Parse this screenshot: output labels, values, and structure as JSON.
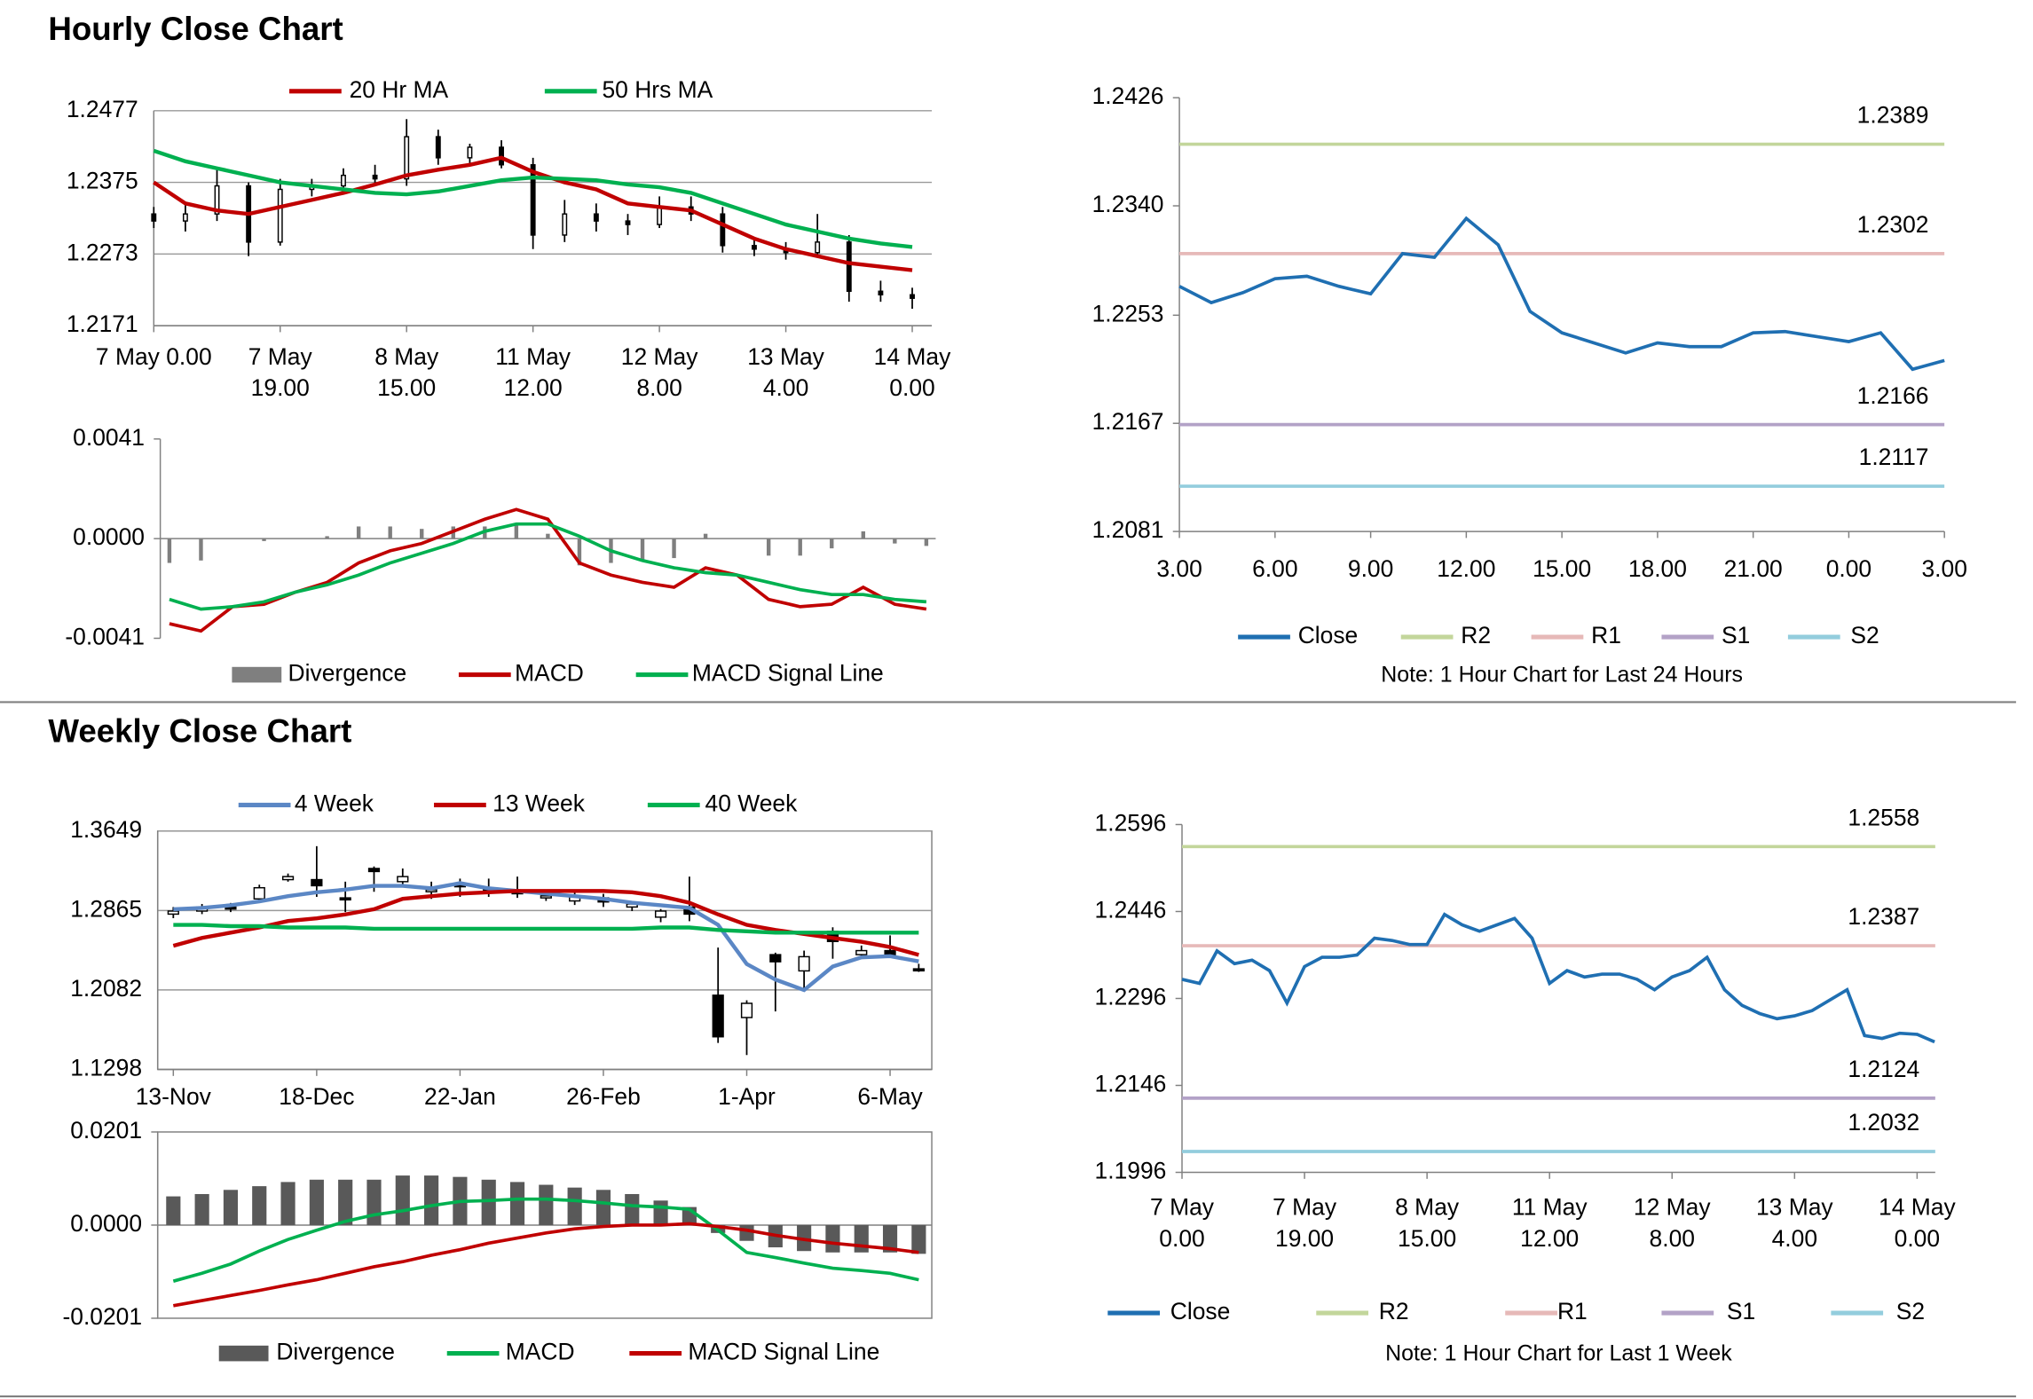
{
  "sections": [
    "Hourly Close Chart",
    "Weekly Close Chart"
  ],
  "chart_data": [
    {
      "type": "candlestick",
      "categories": [
        [
          "7 May 0.00"
        ],
        null,
        null,
        null,
        [
          "7 May",
          "19.00"
        ],
        null,
        null,
        null,
        [
          "8 May",
          "15.00"
        ],
        null,
        null,
        null,
        [
          "11 May",
          "12.00"
        ],
        null,
        null,
        null,
        [
          "12 May",
          "8.00"
        ],
        null,
        null,
        null,
        [
          "13 May",
          "4.00"
        ],
        null,
        null,
        null,
        [
          "14 May",
          "0.00"
        ]
      ],
      "open": [
        1.233,
        1.232,
        1.233,
        1.237,
        1.229,
        1.2365,
        1.237,
        1.2385,
        1.238,
        1.244,
        1.241,
        1.2425,
        1.24,
        1.23,
        1.233,
        1.232,
        1.2315,
        1.234,
        1.233,
        1.2285,
        1.228,
        1.2275,
        1.229,
        1.222,
        1.2215
      ],
      "high": [
        1.234,
        1.2345,
        1.2395,
        1.2375,
        1.238,
        1.238,
        1.2395,
        1.24,
        1.2465,
        1.245,
        1.243,
        1.2435,
        1.241,
        1.235,
        1.2345,
        1.233,
        1.2355,
        1.2355,
        1.234,
        1.2295,
        1.229,
        1.233,
        1.23,
        1.2235,
        1.2225
      ],
      "low": [
        1.231,
        1.2305,
        1.232,
        1.227,
        1.2285,
        1.2355,
        1.236,
        1.237,
        1.237,
        1.24,
        1.24,
        1.2395,
        1.228,
        1.229,
        1.2305,
        1.23,
        1.231,
        1.232,
        1.2275,
        1.227,
        1.2265,
        1.227,
        1.2205,
        1.2205,
        1.2195
      ],
      "close": [
        1.232,
        1.233,
        1.237,
        1.229,
        1.2365,
        1.237,
        1.2385,
        1.238,
        1.244,
        1.241,
        1.2425,
        1.24,
        1.23,
        1.233,
        1.232,
        1.2315,
        1.234,
        1.233,
        1.2285,
        1.228,
        1.2275,
        1.229,
        1.222,
        1.2215,
        1.221
      ],
      "series": [
        {
          "name": "20 Hr MA",
          "color": "#c00000",
          "values": [
            1.2375,
            1.2345,
            1.2335,
            1.233,
            1.234,
            1.235,
            1.236,
            1.2372,
            1.2385,
            1.2393,
            1.24,
            1.241,
            1.239,
            1.2375,
            1.2365,
            1.2345,
            1.234,
            1.2335,
            1.2315,
            1.2295,
            1.228,
            1.227,
            1.226,
            1.2255,
            1.225
          ]
        },
        {
          "name": "50 Hrs MA",
          "color": "#00b050",
          "values": [
            1.242,
            1.2405,
            1.2395,
            1.2385,
            1.2375,
            1.237,
            1.2365,
            1.236,
            1.2358,
            1.2362,
            1.237,
            1.2378,
            1.2382,
            1.238,
            1.2378,
            1.2372,
            1.2368,
            1.236,
            1.2345,
            1.233,
            1.2315,
            1.2305,
            1.2295,
            1.2288,
            1.2283
          ]
        }
      ],
      "ylim": [
        1.2171,
        1.2477
      ],
      "yticks": [
        1.2171,
        1.2273,
        1.2375,
        1.2477
      ],
      "grid": true
    },
    {
      "type": "macd",
      "series": [
        {
          "name": "Divergence",
          "kind": "bar",
          "color": "#7f7f7f",
          "values": [
            -0.001,
            -0.0009,
            0.0,
            -0.0001,
            0.0,
            0.0001,
            0.0005,
            0.0005,
            0.0004,
            0.0005,
            0.0005,
            0.0006,
            0.0002,
            -0.0011,
            -0.001,
            -0.0009,
            -0.0008,
            0.0002,
            0.0,
            -0.0007,
            -0.0007,
            -0.0004,
            0.0003,
            -0.0002,
            -0.0003
          ]
        },
        {
          "name": "MACD",
          "kind": "line",
          "color": "#c00000",
          "values": [
            -0.0035,
            -0.0038,
            -0.0028,
            -0.0027,
            -0.0022,
            -0.0018,
            -0.001,
            -0.0005,
            -0.0002,
            0.0003,
            0.0008,
            0.0012,
            0.0008,
            -0.001,
            -0.0015,
            -0.0018,
            -0.002,
            -0.0012,
            -0.0015,
            -0.0025,
            -0.0028,
            -0.0027,
            -0.002,
            -0.0027,
            -0.0029
          ]
        },
        {
          "name": "MACD Signal Line",
          "kind": "line",
          "color": "#00b050",
          "values": [
            -0.0025,
            -0.0029,
            -0.0028,
            -0.0026,
            -0.0022,
            -0.0019,
            -0.0015,
            -0.001,
            -0.0006,
            -0.0002,
            0.0003,
            0.0006,
            0.0006,
            0.0001,
            -0.0005,
            -0.0009,
            -0.0012,
            -0.0014,
            -0.0015,
            -0.0018,
            -0.0021,
            -0.0023,
            -0.0023,
            -0.0025,
            -0.0026
          ]
        }
      ],
      "ylim": [
        -0.0041,
        0.0041
      ],
      "yticks": [
        -0.0041,
        {
          "value": 0,
          "label": "0.0000"
        },
        0.0041
      ],
      "grid": false
    },
    {
      "type": "line",
      "categories": [
        "3.00",
        null,
        null,
        "6.00",
        null,
        null,
        "9.00",
        null,
        null,
        "12.00",
        null,
        null,
        "15.00",
        null,
        null,
        "18.00",
        null,
        null,
        "21.00",
        null,
        null,
        "0.00",
        null,
        null,
        "3.00"
      ],
      "series": [
        {
          "name": "Close",
          "color": "#1f6fb2",
          "values": [
            1.2276,
            1.2263,
            1.2271,
            1.2282,
            1.2284,
            1.2276,
            1.227,
            1.2302,
            1.2299,
            1.233,
            1.2309,
            1.2256,
            1.2239,
            1.2231,
            1.2223,
            1.2231,
            1.2228,
            1.2228,
            1.2239,
            1.224,
            1.2236,
            1.2232,
            1.2239,
            1.221,
            1.2217
          ]
        }
      ],
      "levels": [
        {
          "name": "R2",
          "color": "#c3d69b",
          "value": 1.2389
        },
        {
          "name": "R1",
          "color": "#e6b9b8",
          "value": 1.2302
        },
        {
          "name": "S1",
          "color": "#b3a2c7",
          "value": 1.2166
        },
        {
          "name": "S2",
          "color": "#93cddd",
          "value": 1.2117
        }
      ],
      "ylim": [
        1.2081,
        1.2426
      ],
      "yticks": [
        1.2081,
        1.2167,
        1.2253,
        {
          "value": 1.234,
          "label": "1.2340"
        },
        1.2426
      ],
      "grid": false,
      "note": "Note: 1 Hour Chart for Last 24 Hours"
    },
    {
      "type": "candlestick",
      "categories": [
        "13-Nov",
        null,
        null,
        null,
        null,
        "18-Dec",
        null,
        null,
        null,
        null,
        "22-Jan",
        null,
        null,
        null,
        null,
        "26-Feb",
        null,
        null,
        null,
        null,
        "1-Apr",
        null,
        null,
        null,
        null,
        "6-May",
        null
      ],
      "open": [
        1.283,
        1.286,
        1.29,
        1.298,
        1.317,
        1.317,
        1.299,
        1.328,
        1.315,
        1.306,
        1.313,
        1.308,
        1.305,
        1.299,
        1.296,
        1.299,
        1.29,
        1.28,
        1.29,
        1.203,
        1.181,
        1.243,
        1.227,
        1.266,
        1.243,
        1.247,
        1.229
      ],
      "high": [
        1.29,
        1.293,
        1.294,
        1.312,
        1.323,
        1.35,
        1.315,
        1.33,
        1.328,
        1.315,
        1.318,
        1.318,
        1.32,
        1.304,
        1.304,
        1.303,
        1.296,
        1.288,
        1.32,
        1.25,
        1.198,
        1.245,
        1.247,
        1.27,
        1.252,
        1.262,
        1.234
      ],
      "low": [
        1.279,
        1.283,
        1.285,
        1.296,
        1.315,
        1.3,
        1.285,
        1.305,
        1.31,
        1.298,
        1.3,
        1.3,
        1.299,
        1.296,
        1.292,
        1.29,
        1.286,
        1.275,
        1.276,
        1.156,
        1.144,
        1.187,
        1.209,
        1.239,
        1.239,
        1.24,
        1.226
      ],
      "close": [
        1.286,
        1.29,
        1.288,
        1.309,
        1.32,
        1.311,
        1.298,
        1.325,
        1.32,
        1.307,
        1.31,
        1.306,
        1.304,
        1.301,
        1.3,
        1.295,
        1.293,
        1.286,
        1.283,
        1.162,
        1.195,
        1.236,
        1.241,
        1.256,
        1.247,
        1.241,
        1.228
      ],
      "series": [
        {
          "name": "4 Week",
          "color": "#5b87c5",
          "values": [
            1.2878,
            1.2891,
            1.2917,
            1.2955,
            1.3007,
            1.3045,
            1.3071,
            1.3109,
            1.3109,
            1.3084,
            1.3135,
            1.3084,
            1.3058,
            1.3032,
            1.3007,
            1.2981,
            1.2942,
            1.2917,
            1.2891,
            1.2724,
            1.2338,
            1.2184,
            1.2081,
            1.2313,
            1.2403,
            1.2415,
            1.2364
          ]
        },
        {
          "name": "13 Week",
          "color": "#c00000",
          "values": [
            1.2518,
            1.2595,
            1.2647,
            1.2698,
            1.2762,
            1.2788,
            1.2827,
            1.2878,
            1.2981,
            1.3007,
            1.3032,
            1.3045,
            1.3058,
            1.3058,
            1.3058,
            1.3058,
            1.3045,
            1.3007,
            1.2942,
            1.2827,
            1.2724,
            1.2673,
            1.2634,
            1.2595,
            1.2557,
            1.2505,
            1.2428
          ]
        },
        {
          "name": "40 Week",
          "color": "#00b050",
          "values": [
            1.2724,
            1.2724,
            1.2711,
            1.2711,
            1.2698,
            1.2698,
            1.2698,
            1.2685,
            1.2685,
            1.2685,
            1.2685,
            1.2685,
            1.2685,
            1.2685,
            1.2685,
            1.2685,
            1.2685,
            1.2698,
            1.2698,
            1.2673,
            1.266,
            1.2647,
            1.2647,
            1.2647,
            1.2647,
            1.2647,
            1.2647
          ]
        }
      ],
      "ylim": [
        1.1298,
        1.3649
      ],
      "yticks": [
        1.1298,
        1.2082,
        1.2865,
        1.3649
      ],
      "grid": true
    },
    {
      "type": "macd",
      "series": [
        {
          "name": "Divergence",
          "kind": "bar",
          "color": "#595959",
          "values": [
            0.0062,
            0.0067,
            0.0076,
            0.0084,
            0.0093,
            0.0098,
            0.0098,
            0.0098,
            0.0107,
            0.0107,
            0.0104,
            0.0098,
            0.0093,
            0.0087,
            0.0081,
            0.0076,
            0.0067,
            0.0053,
            0.0039,
            -0.0017,
            -0.0034,
            -0.0048,
            -0.0056,
            -0.0059,
            -0.0059,
            -0.0059,
            -0.0062
          ]
        },
        {
          "name": "MACD",
          "kind": "line",
          "color": "#00b050",
          "values": [
            -0.0121,
            -0.0104,
            -0.0084,
            -0.0056,
            -0.0031,
            -0.0011,
            0.0008,
            0.0022,
            0.0031,
            0.0042,
            0.0051,
            0.0053,
            0.0056,
            0.0056,
            0.0053,
            0.0048,
            0.0042,
            0.0039,
            0.0034,
            -0.0011,
            -0.0059,
            -0.007,
            -0.0082,
            -0.0093,
            -0.0098,
            -0.0104,
            -0.0118
          ]
        },
        {
          "name": "MACD Signal Line",
          "kind": "line",
          "color": "#c00000",
          "values": [
            -0.0174,
            -0.0163,
            -0.0152,
            -0.0141,
            -0.0129,
            -0.0118,
            -0.0104,
            -0.009,
            -0.0079,
            -0.0065,
            -0.0053,
            -0.0039,
            -0.0028,
            -0.0017,
            -0.0008,
            -0.0003,
            0.0,
            0.0,
            0.0003,
            -0.0003,
            -0.0011,
            -0.0022,
            -0.0031,
            -0.0039,
            -0.0045,
            -0.0051,
            -0.0059
          ]
        }
      ],
      "ylim": [
        -0.0201,
        0.0201
      ],
      "yticks": [
        -0.0201,
        {
          "value": 0,
          "label": "0.0000"
        },
        0.0201
      ],
      "grid": false
    },
    {
      "type": "line",
      "categories": [
        [
          "7 May",
          "0.00"
        ],
        null,
        null,
        null,
        null,
        null,
        null,
        [
          "7 May",
          "19.00"
        ],
        null,
        null,
        null,
        null,
        null,
        null,
        [
          "8 May",
          "15.00"
        ],
        null,
        null,
        null,
        null,
        null,
        null,
        [
          "11 May",
          "12.00"
        ],
        null,
        null,
        null,
        null,
        null,
        null,
        [
          "12 May",
          "8.00"
        ],
        null,
        null,
        null,
        null,
        null,
        null,
        [
          "13 May",
          "4.00"
        ],
        null,
        null,
        null,
        null,
        null,
        null,
        [
          "14 May",
          "0.00"
        ],
        null
      ],
      "series": [
        {
          "name": "Close",
          "color": "#1f6fb2",
          "values": [
            1.2329,
            1.2322,
            1.2378,
            1.2356,
            1.2362,
            1.2344,
            1.2288,
            1.2351,
            1.2367,
            1.2367,
            1.2371,
            1.24,
            1.2396,
            1.2389,
            1.2389,
            1.2441,
            1.2423,
            1.2412,
            1.2423,
            1.2434,
            1.24,
            1.2322,
            1.2344,
            1.2333,
            1.2338,
            1.2338,
            1.2329,
            1.2311,
            1.2333,
            1.2344,
            1.2367,
            1.2311,
            1.2284,
            1.227,
            1.2261,
            1.2266,
            1.2275,
            1.2293,
            1.2311,
            1.2232,
            1.2227,
            1.2236,
            1.2234,
            1.2221
          ]
        }
      ],
      "levels": [
        {
          "name": "R2",
          "color": "#c3d69b",
          "value": 1.2558
        },
        {
          "name": "R1",
          "color": "#e6b9b8",
          "value": 1.2387
        },
        {
          "name": "S1",
          "color": "#b3a2c7",
          "value": 1.2124
        },
        {
          "name": "S2",
          "color": "#93cddd",
          "value": 1.2032
        }
      ],
      "ylim": [
        1.1996,
        1.2596
      ],
      "yticks": [
        1.1996,
        1.2146,
        1.2296,
        1.2446,
        1.2596
      ],
      "grid": false,
      "note": "Note: 1 Hour Chart for Last 1 Week"
    }
  ]
}
